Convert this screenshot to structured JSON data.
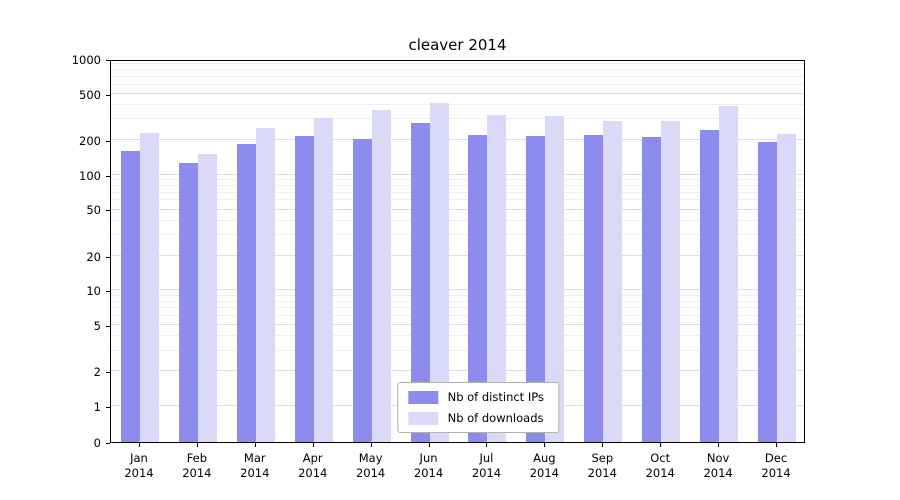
{
  "figure": {
    "title": "cleaver 2014"
  },
  "chart_data": {
    "type": "bar",
    "title": "cleaver 2014",
    "categories": [
      "Jan",
      "Feb",
      "Mar",
      "Apr",
      "May",
      "Jun",
      "Jul",
      "Aug",
      "Sep",
      "Oct",
      "Nov",
      "Dec"
    ],
    "year_label": "2014",
    "series": [
      {
        "name": "Nb of distinct IPs",
        "color": "#8c8cef",
        "values": [
          160,
          125,
          185,
          215,
          205,
          280,
          220,
          215,
          220,
          210,
          245,
          190
        ]
      },
      {
        "name": "Nb of downloads",
        "color": "#dadaf8",
        "values": [
          230,
          150,
          255,
          310,
          360,
          415,
          330,
          320,
          290,
          290,
          390,
          225
        ]
      }
    ],
    "xlabel": "",
    "ylabel": "",
    "yscale": "symlog",
    "yticks": [
      0,
      1,
      2,
      5,
      10,
      20,
      50,
      100,
      200,
      500,
      1000
    ],
    "minor_gridline_mantissas": [
      3,
      4,
      6,
      7,
      8,
      9
    ],
    "ylim": [
      0,
      1000
    ],
    "grid": "horizontal",
    "legend_position": "lower center inside",
    "colors": {
      "spine": "#000000",
      "major_grid": "#dedede",
      "minor_grid": "#efefef",
      "legend_border": "#b0b0b0",
      "background": "#ffffff"
    }
  }
}
